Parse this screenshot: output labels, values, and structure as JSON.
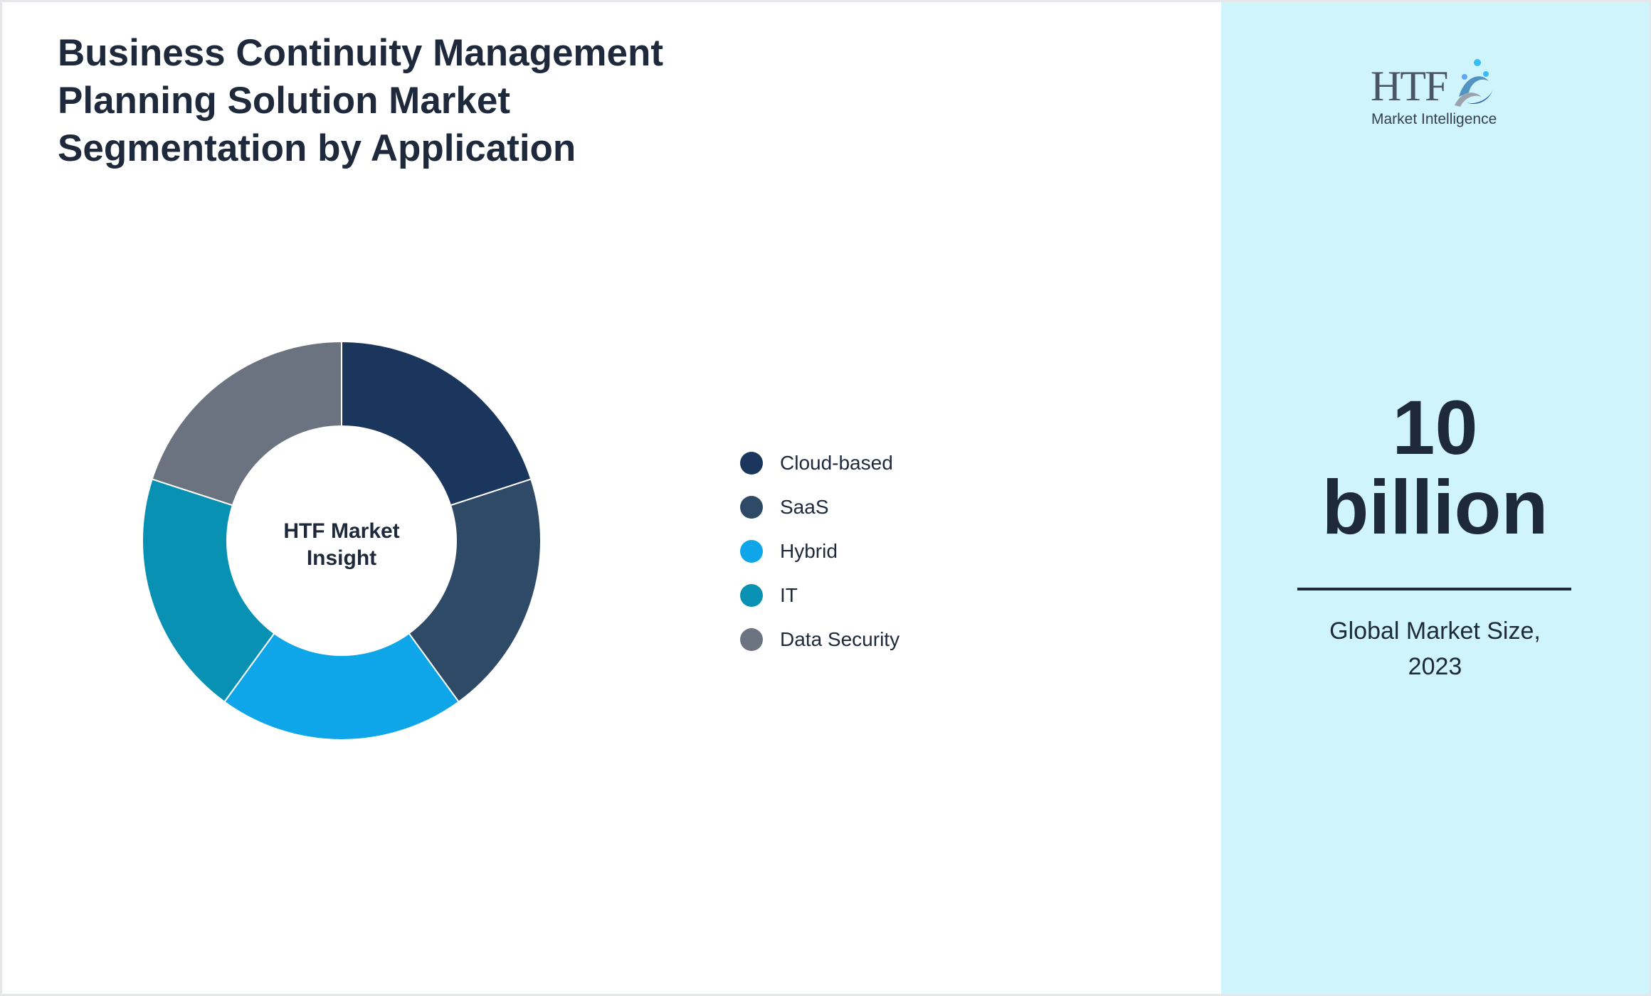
{
  "title_lines": [
    "Business Continuity Management",
    "Planning Solution Market",
    "Segmentation by Application"
  ],
  "logo": {
    "text": "HTF",
    "subtitle": "Market Intelligence",
    "icon": "htf-swirl-logo-icon"
  },
  "metric": {
    "value": "10",
    "unit": "billion",
    "caption_line1": "Global Market Size,",
    "caption_line2": "2023"
  },
  "colors": {
    "sidebar_bg": "#cff4fc",
    "text": "#1e293b"
  },
  "chart_data": {
    "type": "pie",
    "variant": "donut",
    "center_label_lines": [
      "HTF Market",
      "Insight"
    ],
    "categories": [
      "Cloud-based",
      "SaaS",
      "Hybrid",
      "IT",
      "Data Security"
    ],
    "values": [
      20,
      20,
      20,
      20,
      20
    ],
    "colors": [
      "#1b365d",
      "#2e4a66",
      "#0ea5e9",
      "#0891b2",
      "#6b7280"
    ],
    "legend_position": "right"
  }
}
